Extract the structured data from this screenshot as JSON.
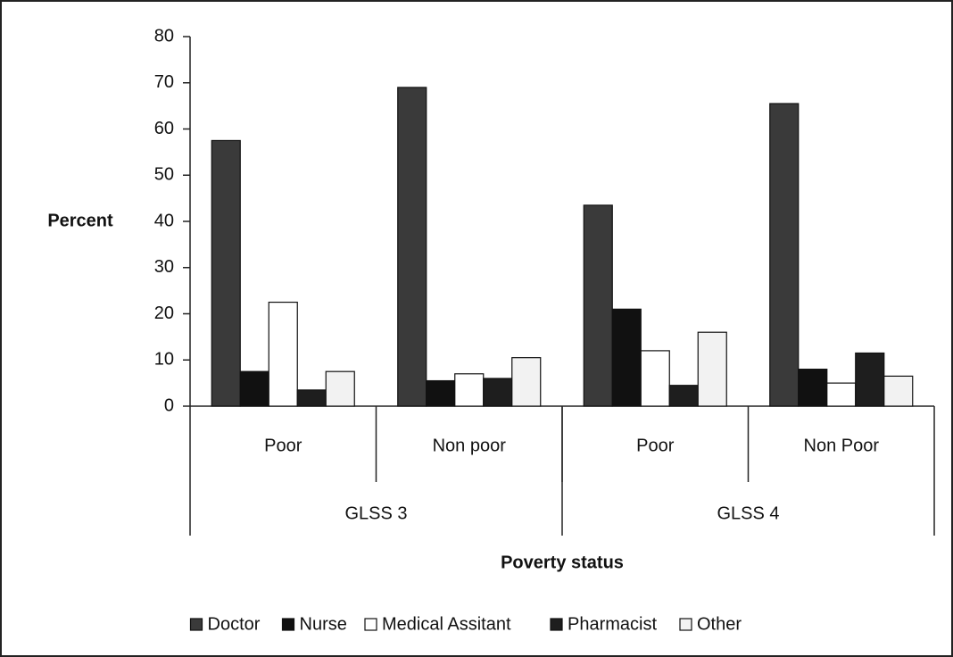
{
  "chart_data": {
    "type": "bar",
    "y_label": "Percent",
    "x_label": "Poverty status",
    "categories": [
      "Poor",
      "Non  poor",
      "Poor",
      "Non Poor"
    ],
    "group_labels": [
      "GLSS 3",
      "GLSS 4"
    ],
    "series": [
      {
        "name": "Doctor",
        "color": "#3a3a3a",
        "values": [
          57.5,
          69,
          43.5,
          65.5
        ]
      },
      {
        "name": "Nurse",
        "color": "#111111",
        "values": [
          7.5,
          5.5,
          21,
          8
        ]
      },
      {
        "name": "Medical Assitant",
        "color": "#ffffff",
        "values": [
          22.5,
          7,
          12,
          5
        ]
      },
      {
        "name": "Pharmacist",
        "color": "#1e1e1e",
        "values": [
          3.5,
          6,
          4.5,
          11.5
        ]
      },
      {
        "name": "Other",
        "color": "#f2f2f2",
        "values": [
          7.5,
          10.5,
          16,
          6.5
        ]
      }
    ],
    "ylim": [
      0,
      80
    ],
    "yticks": [
      0,
      10,
      20,
      30,
      40,
      50,
      60,
      70,
      80
    ],
    "legend": "bottom"
  }
}
